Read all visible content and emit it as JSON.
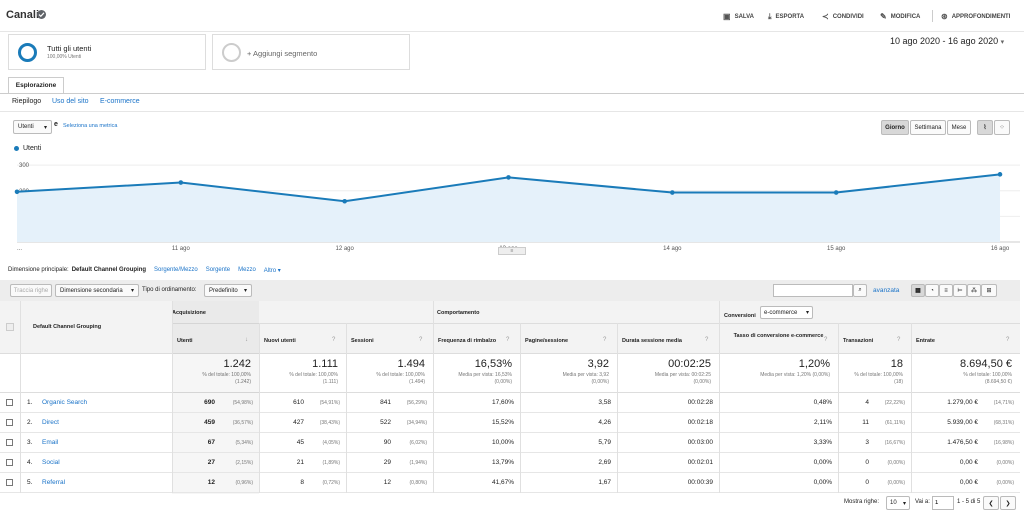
{
  "header": {
    "title": "Canali",
    "actions": [
      {
        "label": "SALVA",
        "icon": "save-icon"
      },
      {
        "label": "ESPORTA",
        "icon": "export-icon"
      },
      {
        "label": "CONDIVIDI",
        "icon": "share-icon"
      },
      {
        "label": "MODIFICA",
        "icon": "edit-icon"
      },
      {
        "label": "APPROFONDIMENTI",
        "icon": "insights-icon"
      }
    ]
  },
  "segments": {
    "active": {
      "name": "Tutti gli utenti",
      "percent": "100,00% Utenti"
    },
    "add": "+ Aggiungi segmento"
  },
  "date_range": "10 ago 2020 - 16 ago 2020",
  "tab": "Esplorazione",
  "subnav": [
    "Riepilogo",
    "Uso del sito",
    "E-commerce"
  ],
  "metric_controls": {
    "metric": "Utenti",
    "vs": "e",
    "select_metric": "Seleziona una metrica",
    "granularity": [
      "Giorno",
      "Settimana",
      "Mese"
    ],
    "active_granularity": "Giorno"
  },
  "chart_data": {
    "type": "line",
    "series": [
      {
        "name": "Utenti",
        "values": [
          196,
          232,
          159,
          252,
          193,
          193,
          264
        ]
      }
    ],
    "x": [
      "10 ago",
      "11 ago",
      "12 ago",
      "13 ago",
      "14 ago",
      "15 ago",
      "16 ago"
    ],
    "x_tick_labels": [
      "...",
      "11 ago",
      "12 ago",
      "13 ago",
      "14 ago",
      "15 ago",
      "16 ago"
    ],
    "y_ticks": [
      100,
      200,
      300
    ],
    "ylim": [
      0,
      320
    ],
    "color": "#1a7bb9"
  },
  "dimension_bar": {
    "label": "Dimensione principale:",
    "active": "Default Channel Grouping",
    "others": [
      "Sorgente/Mezzo",
      "Sorgente",
      "Mezzo",
      "Altro ▾"
    ]
  },
  "toolbar": {
    "plot_rows": "Traccia righe",
    "secondary": "Dimensione secondaria",
    "sort_label": "Tipo di ordinamento:",
    "sort_value": "Predefinito",
    "advanced": "avanzata",
    "search_placeholder": ""
  },
  "table": {
    "dimension_header": "Default Channel Grouping",
    "groups": [
      "Acquisizione",
      "Comportamento",
      "Conversioni"
    ],
    "conversion_select": "e-commerce",
    "columns": [
      "Utenti",
      "Nuovi utenti",
      "Sessioni",
      "Frequenza di rimbalzo",
      "Pagine/sessione",
      "Durata sessione media",
      "Tasso di conversione e-commerce",
      "Transazioni",
      "Entrate"
    ],
    "totals": [
      {
        "value": "1.242",
        "sub1": "% del totale: 100,00%",
        "sub2": "(1.242)"
      },
      {
        "value": "1.111",
        "sub1": "% del totale: 100,00%",
        "sub2": "(1.111)"
      },
      {
        "value": "1.494",
        "sub1": "% del totale: 100,00%",
        "sub2": "(1.494)"
      },
      {
        "value": "16,53%",
        "sub1": "Media per vista: 16,53%",
        "sub2": "(0,00%)"
      },
      {
        "value": "3,92",
        "sub1": "Media per vista: 3,92",
        "sub2": "(0,00%)"
      },
      {
        "value": "00:02:25",
        "sub1": "Media per vista: 00:02:25",
        "sub2": "(0,00%)"
      },
      {
        "value": "1,20%",
        "sub1": "Media per vista: 1,20% (0,00%)",
        "sub2": ""
      },
      {
        "value": "18",
        "sub1": "% del totale: 100,00%",
        "sub2": "(18)"
      },
      {
        "value": "8.694,50 €",
        "sub1": "% del totale: 100,00%",
        "sub2": "(8.694,50 €)"
      }
    ],
    "rows": [
      {
        "n": "1.",
        "name": "Organic Search",
        "c": [
          [
            "690",
            "(54,98%)"
          ],
          [
            "610",
            "(54,91%)"
          ],
          [
            "841",
            "(56,29%)"
          ],
          [
            "17,60%",
            ""
          ],
          [
            "3,58",
            ""
          ],
          [
            "00:02:28",
            ""
          ],
          [
            "0,48%",
            ""
          ],
          [
            "4",
            "(22,22%)"
          ],
          [
            "1.279,00 €",
            "(14,71%)"
          ]
        ]
      },
      {
        "n": "2.",
        "name": "Direct",
        "c": [
          [
            "459",
            "(36,57%)"
          ],
          [
            "427",
            "(38,43%)"
          ],
          [
            "522",
            "(34,94%)"
          ],
          [
            "15,52%",
            ""
          ],
          [
            "4,26",
            ""
          ],
          [
            "00:02:18",
            ""
          ],
          [
            "2,11%",
            ""
          ],
          [
            "11",
            "(61,11%)"
          ],
          [
            "5.939,00 €",
            "(68,31%)"
          ]
        ]
      },
      {
        "n": "3.",
        "name": "Email",
        "c": [
          [
            "67",
            "(5,34%)"
          ],
          [
            "45",
            "(4,05%)"
          ],
          [
            "90",
            "(6,02%)"
          ],
          [
            "10,00%",
            ""
          ],
          [
            "5,79",
            ""
          ],
          [
            "00:03:00",
            ""
          ],
          [
            "3,33%",
            ""
          ],
          [
            "3",
            "(16,67%)"
          ],
          [
            "1.476,50 €",
            "(16,98%)"
          ]
        ]
      },
      {
        "n": "4.",
        "name": "Social",
        "c": [
          [
            "27",
            "(2,15%)"
          ],
          [
            "21",
            "(1,89%)"
          ],
          [
            "29",
            "(1,94%)"
          ],
          [
            "13,79%",
            ""
          ],
          [
            "2,69",
            ""
          ],
          [
            "00:02:01",
            ""
          ],
          [
            "0,00%",
            ""
          ],
          [
            "0",
            "(0,00%)"
          ],
          [
            "0,00 €",
            "(0,00%)"
          ]
        ]
      },
      {
        "n": "5.",
        "name": "Referral",
        "c": [
          [
            "12",
            "(0,96%)"
          ],
          [
            "8",
            "(0,72%)"
          ],
          [
            "12",
            "(0,80%)"
          ],
          [
            "41,67%",
            ""
          ],
          [
            "1,67",
            ""
          ],
          [
            "00:00:39",
            ""
          ],
          [
            "0,00%",
            ""
          ],
          [
            "0",
            "(0,00%)"
          ],
          [
            "0,00 €",
            "(0,00%)"
          ]
        ]
      }
    ]
  },
  "pagination": {
    "show_rows_label": "Mostra righe:",
    "show_rows_value": "10",
    "goto_label": "Vai a:",
    "goto_value": "1",
    "range": "1 - 5 di 5"
  }
}
